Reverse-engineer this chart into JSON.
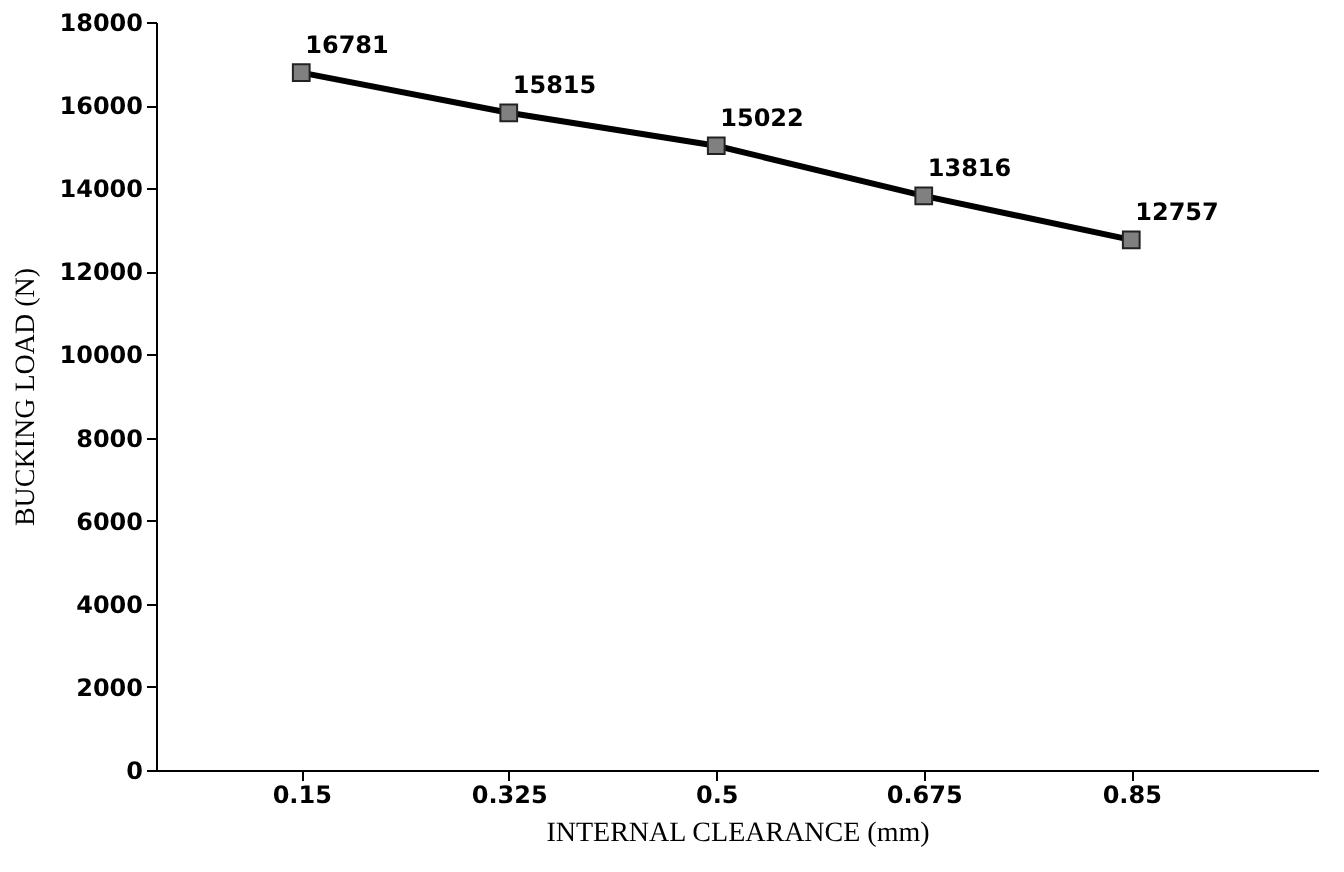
{
  "chart_data": {
    "type": "line",
    "xlabel": "INTERNAL CLEARANCE (mm)",
    "ylabel": "BUCKING LOAD (N)",
    "categories": [
      "0.15",
      "0.325",
      "0.5",
      "0.675",
      "0.85"
    ],
    "series": [
      {
        "color": "#000000",
        "values": [
          16781,
          15815,
          15022,
          13816,
          12757
        ]
      }
    ],
    "ylim": [
      0,
      18000
    ],
    "yticks": [
      0,
      2000,
      4000,
      6000,
      8000,
      10000,
      12000,
      14000,
      16000,
      18000
    ],
    "grid": false,
    "legend": false,
    "marker": "square",
    "line_style": "solid",
    "data_labels": true
  }
}
